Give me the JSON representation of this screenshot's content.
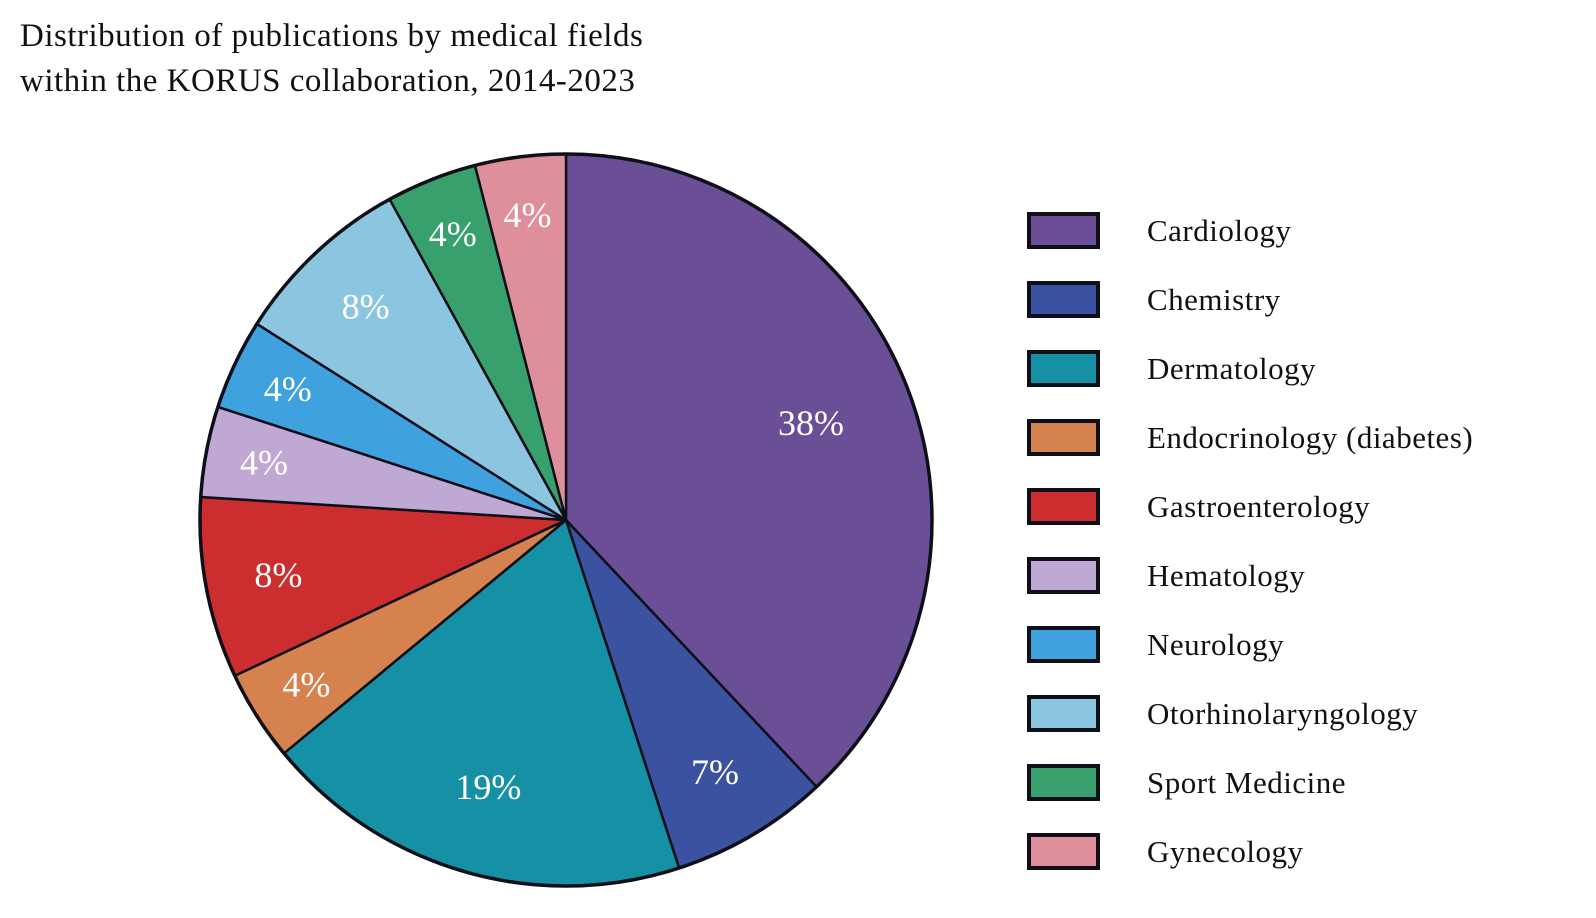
{
  "title": "Distribution of publications by medical fields\nwithin the KORUS collaboration, 2014-2023",
  "colors": {
    "background": "#ffffff",
    "pie_outline": "#0f0f1a",
    "slice_label_text": "#ffffff",
    "legend_text": "#111111",
    "title_text": "#111111"
  },
  "chart_data": {
    "type": "pie",
    "title": "Distribution of publications by medical fields within the KORUS collaboration, 2014-2023",
    "unit": "%",
    "start_angle": "12 o'clock",
    "direction": "clockwise",
    "legend_position": "right",
    "slices": [
      {
        "label": "Cardiology",
        "value": 38,
        "color": "#6a4f96"
      },
      {
        "label": "Chemistry",
        "value": 7,
        "color": "#3b52a0"
      },
      {
        "label": "Dermatology",
        "value": 19,
        "color": "#1690a4"
      },
      {
        "label": "Endocrinology (diabetes)",
        "value": 4,
        "color": "#d6824e"
      },
      {
        "label": "Gastroenterology",
        "value": 8,
        "color": "#cc2e30"
      },
      {
        "label": "Hematology",
        "value": 4,
        "color": "#c0a8d4"
      },
      {
        "label": "Neurology",
        "value": 4,
        "color": "#3fa1de"
      },
      {
        "label": "Otorhinolaryngology",
        "value": 8,
        "color": "#8cc5df"
      },
      {
        "label": "Sport Medicine",
        "value": 4,
        "color": "#37a06d"
      },
      {
        "label": "Gynecology",
        "value": 4,
        "color": "#df8f9c"
      }
    ]
  }
}
